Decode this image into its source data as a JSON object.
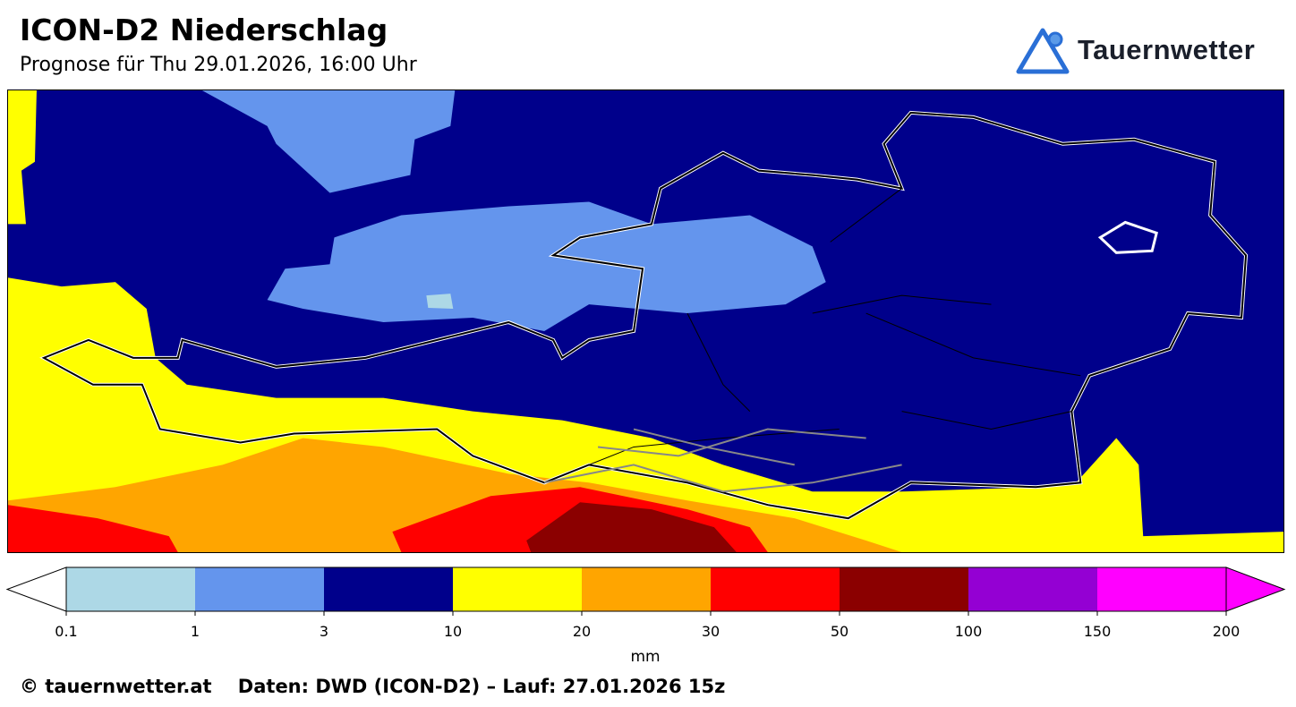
{
  "header": {
    "title": "ICON-D2 Niederschlag",
    "subtitle": "Prognose für Thu 29.01.2026, 16:00 Uhr"
  },
  "logo": {
    "text": "Tauernwetter",
    "color": "#2a6fd6"
  },
  "map": {
    "background_color": "#00008b",
    "region": "Austria / Alps"
  },
  "legend": {
    "unit": "mm",
    "ticks": [
      "0.1",
      "1",
      "3",
      "10",
      "20",
      "30",
      "50",
      "100",
      "150",
      "200"
    ],
    "colors": [
      "#add8e6",
      "#6495ed",
      "#00008b",
      "#ffff00",
      "#ffa500",
      "#ff0000",
      "#8b0000",
      "#9400d3",
      "#ff00ff"
    ],
    "under_color": "#ffffff",
    "over_color": "#ff00ff"
  },
  "footer": {
    "copyright": "© tauernwetter.at",
    "source": "Daten: DWD (ICON-D2) – Lauf: 27.01.2026 15z"
  }
}
